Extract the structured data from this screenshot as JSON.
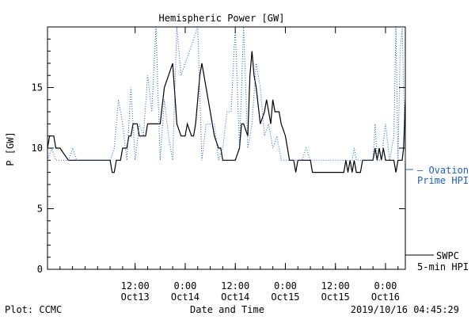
{
  "chart_data": {
    "type": "line",
    "title": "Hemispheric Power [GW]",
    "ylabel": "P [GW]",
    "xlabel": "Date and Time",
    "ylim": [
      0,
      20
    ],
    "y_ticks": [
      0,
      5,
      10,
      15
    ],
    "x_range": [
      "2019-10-12 15:00",
      "2019-10-16 04:45"
    ],
    "x_ticks": [
      {
        "t": "2019-10-13 12:00",
        "label1": "12:00",
        "label2": "Oct13"
      },
      {
        "t": "2019-10-14 00:00",
        "label1": "0:00",
        "label2": "Oct14"
      },
      {
        "t": "2019-10-14 12:00",
        "label1": "12:00",
        "label2": "Oct14"
      },
      {
        "t": "2019-10-15 00:00",
        "label1": "0:00",
        "label2": "Oct15"
      },
      {
        "t": "2019-10-15 12:00",
        "label1": "12:00",
        "label2": "Oct15"
      },
      {
        "t": "2019-10-16 00:00",
        "label1": "0:00",
        "label2": "Oct16"
      }
    ],
    "series": [
      {
        "name": "SWPC 5-min HPI",
        "style": "solid",
        "color": "#000000",
        "points": [
          [
            "2019-10-12 15:00",
            10
          ],
          [
            "2019-10-12 15:30",
            11
          ],
          [
            "2019-10-12 16:30",
            11
          ],
          [
            "2019-10-12 17:00",
            10
          ],
          [
            "2019-10-12 18:00",
            10
          ],
          [
            "2019-10-12 19:00",
            9.5
          ],
          [
            "2019-10-12 20:00",
            9
          ],
          [
            "2019-10-13 06:00",
            9
          ],
          [
            "2019-10-13 06:30",
            8
          ],
          [
            "2019-10-13 07:00",
            8
          ],
          [
            "2019-10-13 07:30",
            9
          ],
          [
            "2019-10-13 08:30",
            9
          ],
          [
            "2019-10-13 09:00",
            10
          ],
          [
            "2019-10-13 10:00",
            10
          ],
          [
            "2019-10-13 10:30",
            11
          ],
          [
            "2019-10-13 11:00",
            11
          ],
          [
            "2019-10-13 11:30",
            12
          ],
          [
            "2019-10-13 12:30",
            12
          ],
          [
            "2019-10-13 13:00",
            11
          ],
          [
            "2019-10-13 14:30",
            11
          ],
          [
            "2019-10-13 15:00",
            12
          ],
          [
            "2019-10-13 18:00",
            12
          ],
          [
            "2019-10-13 19:00",
            15
          ],
          [
            "2019-10-13 20:00",
            16
          ],
          [
            "2019-10-13 21:00",
            17
          ],
          [
            "2019-10-13 22:00",
            12
          ],
          [
            "2019-10-13 23:00",
            11
          ],
          [
            "2019-10-14 00:00",
            11
          ],
          [
            "2019-10-14 00:30",
            12
          ],
          [
            "2019-10-14 01:30",
            11
          ],
          [
            "2019-10-14 02:00",
            11
          ],
          [
            "2019-10-14 02:30",
            12
          ],
          [
            "2019-10-14 03:30",
            16
          ],
          [
            "2019-10-14 04:00",
            17
          ],
          [
            "2019-10-14 05:00",
            15
          ],
          [
            "2019-10-14 06:00",
            13
          ],
          [
            "2019-10-14 07:00",
            11
          ],
          [
            "2019-10-14 08:00",
            10
          ],
          [
            "2019-10-14 08:30",
            10
          ],
          [
            "2019-10-14 09:00",
            9
          ],
          [
            "2019-10-14 12:00",
            9
          ],
          [
            "2019-10-14 13:00",
            10
          ],
          [
            "2019-10-14 13:30",
            12
          ],
          [
            "2019-10-14 14:00",
            12
          ],
          [
            "2019-10-14 15:00",
            11
          ],
          [
            "2019-10-14 15:30",
            16
          ],
          [
            "2019-10-14 16:00",
            18
          ],
          [
            "2019-10-14 16:30",
            16
          ],
          [
            "2019-10-14 17:00",
            15
          ],
          [
            "2019-10-14 18:00",
            12
          ],
          [
            "2019-10-14 19:00",
            13
          ],
          [
            "2019-10-14 19:30",
            14
          ],
          [
            "2019-10-14 20:00",
            13
          ],
          [
            "2019-10-14 20:30",
            12
          ],
          [
            "2019-10-14 21:00",
            14
          ],
          [
            "2019-10-14 21:30",
            13
          ],
          [
            "2019-10-14 22:30",
            13
          ],
          [
            "2019-10-14 23:00",
            12
          ],
          [
            "2019-10-15 00:00",
            11
          ],
          [
            "2019-10-15 00:30",
            10
          ],
          [
            "2019-10-15 01:00",
            9
          ],
          [
            "2019-10-15 02:00",
            9
          ],
          [
            "2019-10-15 02:30",
            8
          ],
          [
            "2019-10-15 03:00",
            9
          ],
          [
            "2019-10-15 06:00",
            9
          ],
          [
            "2019-10-15 06:30",
            8
          ],
          [
            "2019-10-15 14:00",
            8
          ],
          [
            "2019-10-15 14:30",
            9
          ],
          [
            "2019-10-15 15:00",
            8
          ],
          [
            "2019-10-15 15:30",
            9
          ],
          [
            "2019-10-15 16:00",
            8
          ],
          [
            "2019-10-15 16:30",
            9
          ],
          [
            "2019-10-15 17:00",
            8
          ],
          [
            "2019-10-15 18:00",
            8
          ],
          [
            "2019-10-15 18:30",
            9
          ],
          [
            "2019-10-15 21:00",
            9
          ],
          [
            "2019-10-15 21:30",
            10
          ],
          [
            "2019-10-15 22:00",
            9
          ],
          [
            "2019-10-15 22:30",
            10
          ],
          [
            "2019-10-15 23:00",
            9
          ],
          [
            "2019-10-15 23:30",
            10
          ],
          [
            "2019-10-16 00:00",
            9
          ],
          [
            "2019-10-16 02:00",
            9
          ],
          [
            "2019-10-16 02:30",
            8
          ],
          [
            "2019-10-16 03:00",
            9
          ],
          [
            "2019-10-16 04:00",
            9
          ],
          [
            "2019-10-16 04:20",
            10
          ],
          [
            "2019-10-16 04:45",
            14
          ]
        ]
      },
      {
        "name": "Ovation Prime HPI",
        "style": "dotted",
        "color": "#1f5fbf",
        "points": [
          [
            "2019-10-12 15:00",
            9
          ],
          [
            "2019-10-12 16:00",
            10
          ],
          [
            "2019-10-12 17:00",
            9
          ],
          [
            "2019-10-12 18:00",
            9
          ],
          [
            "2019-10-12 19:00",
            9
          ],
          [
            "2019-10-12 20:00",
            9
          ],
          [
            "2019-10-12 21:00",
            10
          ],
          [
            "2019-10-12 22:00",
            9
          ],
          [
            "2019-10-13 06:00",
            9
          ],
          [
            "2019-10-13 07:00",
            10
          ],
          [
            "2019-10-13 08:00",
            14
          ],
          [
            "2019-10-13 09:00",
            12
          ],
          [
            "2019-10-13 10:00",
            9
          ],
          [
            "2019-10-13 11:00",
            15
          ],
          [
            "2019-10-13 12:00",
            9
          ],
          [
            "2019-10-13 13:00",
            12
          ],
          [
            "2019-10-13 14:00",
            11
          ],
          [
            "2019-10-13 15:00",
            16
          ],
          [
            "2019-10-13 16:00",
            13
          ],
          [
            "2019-10-13 17:00",
            20
          ],
          [
            "2019-10-13 18:00",
            9
          ],
          [
            "2019-10-13 19:00",
            14
          ],
          [
            "2019-10-13 20:00",
            11
          ],
          [
            "2019-10-13 21:00",
            9
          ],
          [
            "2019-10-13 22:00",
            20
          ],
          [
            "2019-10-13 23:00",
            16
          ],
          [
            "2019-10-14 00:00",
            17
          ],
          [
            "2019-10-14 01:00",
            18
          ],
          [
            "2019-10-14 02:00",
            19
          ],
          [
            "2019-10-14 03:00",
            20
          ],
          [
            "2019-10-14 04:00",
            9
          ],
          [
            "2019-10-14 05:00",
            12
          ],
          [
            "2019-10-14 06:00",
            12
          ],
          [
            "2019-10-14 07:00",
            12
          ],
          [
            "2019-10-14 08:00",
            9
          ],
          [
            "2019-10-14 09:00",
            10
          ],
          [
            "2019-10-14 10:00",
            13
          ],
          [
            "2019-10-14 11:00",
            13
          ],
          [
            "2019-10-14 12:00",
            20
          ],
          [
            "2019-10-14 13:00",
            10
          ],
          [
            "2019-10-14 14:00",
            20
          ],
          [
            "2019-10-14 15:00",
            10
          ],
          [
            "2019-10-14 16:00",
            12
          ],
          [
            "2019-10-14 17:00",
            17
          ],
          [
            "2019-10-14 18:00",
            15
          ],
          [
            "2019-10-14 19:00",
            11
          ],
          [
            "2019-10-14 20:00",
            12
          ],
          [
            "2019-10-14 21:00",
            10
          ],
          [
            "2019-10-14 22:00",
            11
          ],
          [
            "2019-10-14 23:00",
            9
          ],
          [
            "2019-10-15 00:00",
            9
          ],
          [
            "2019-10-15 04:00",
            9
          ],
          [
            "2019-10-15 05:00",
            10
          ],
          [
            "2019-10-15 06:00",
            9
          ],
          [
            "2019-10-15 16:00",
            9
          ],
          [
            "2019-10-15 16:30",
            10
          ],
          [
            "2019-10-15 17:00",
            9
          ],
          [
            "2019-10-15 21:00",
            9
          ],
          [
            "2019-10-15 21:30",
            12
          ],
          [
            "2019-10-15 22:00",
            9
          ],
          [
            "2019-10-15 23:00",
            9
          ],
          [
            "2019-10-16 00:00",
            12
          ],
          [
            "2019-10-16 01:00",
            9
          ],
          [
            "2019-10-16 02:00",
            11
          ],
          [
            "2019-10-16 02:30",
            20
          ],
          [
            "2019-10-16 03:00",
            9
          ],
          [
            "2019-10-16 03:30",
            18
          ],
          [
            "2019-10-16 04:00",
            20
          ],
          [
            "2019-10-16 04:45",
            9
          ]
        ]
      }
    ],
    "legend": {
      "placement": "right",
      "ovation_line1": "— Ovation",
      "ovation_line2": "Prime HPI",
      "swpc_line1": "SWPC",
      "swpc_line2": "5-min HPI"
    },
    "footer": {
      "left": "Plot: CCMC",
      "center": "Date and Time",
      "right": "2019/10/16 04:45:29"
    }
  }
}
